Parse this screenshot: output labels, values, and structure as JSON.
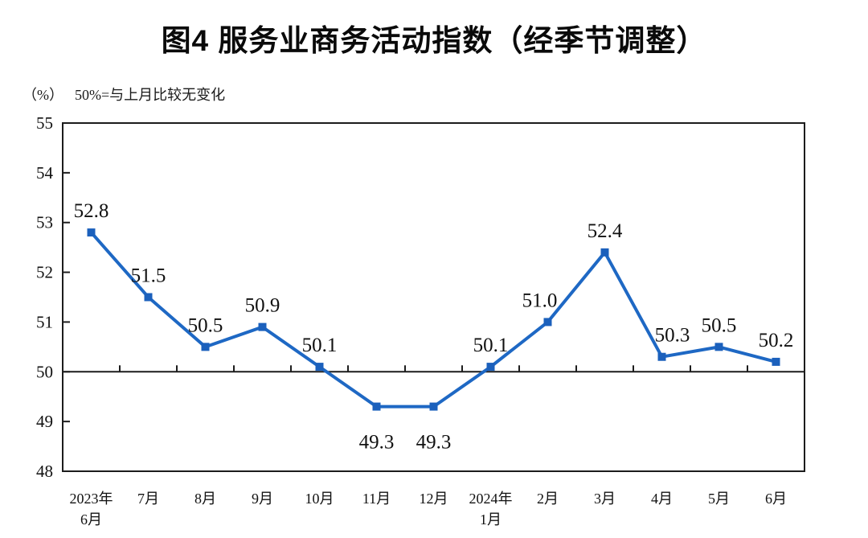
{
  "header": {
    "title": "图4 服务业商务活动指数（经季节调整）",
    "unit_label": "（%）",
    "reference_note": "50%=与上月比较无变化"
  },
  "chart_data": {
    "type": "line",
    "title": "图4 服务业商务活动指数（经季节调整）",
    "unit_label": "（%）",
    "reference_note": "50%=与上月比较无变化",
    "categories": [
      "2023年|6月",
      "7月",
      "8月",
      "9月",
      "10月",
      "11月",
      "12月",
      "2024年|1月",
      "2月",
      "3月",
      "4月",
      "5月",
      "6月"
    ],
    "values": [
      52.8,
      51.5,
      50.5,
      50.9,
      50.1,
      49.3,
      49.3,
      50.1,
      51.0,
      52.4,
      50.3,
      50.5,
      50.2
    ],
    "value_decimals": 1,
    "label_below_indices": [
      5,
      6
    ],
    "xlabel": "",
    "ylabel": "%",
    "ylim": [
      48,
      55
    ],
    "ytick_step": 1,
    "yticks": [
      "48",
      "49",
      "50",
      "51",
      "52",
      "53",
      "54",
      "55"
    ],
    "reference_line": 50,
    "grid": false,
    "legend": false,
    "line_color": "#1e68c4",
    "marker": "square",
    "marker_color": "#1b60bc",
    "axis_color": "#1c1c1c",
    "text_color": "#111111"
  }
}
